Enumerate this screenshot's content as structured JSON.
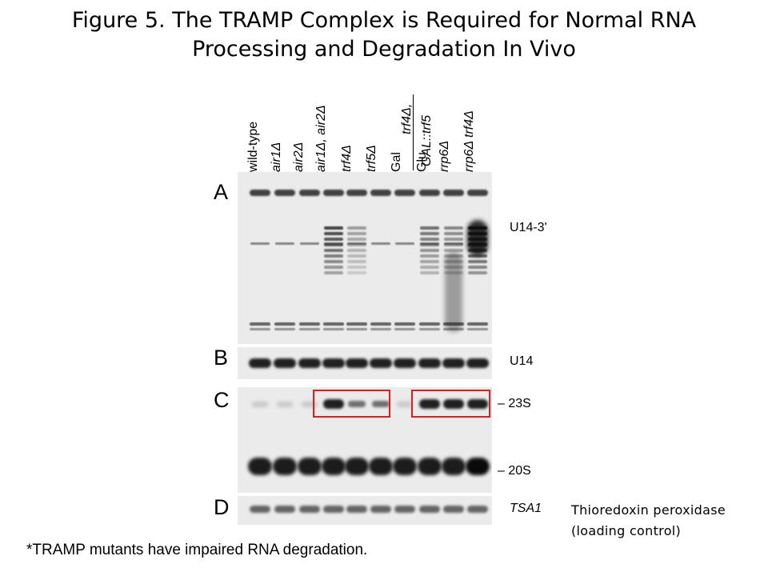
{
  "title": {
    "line1": "Figure 5. The TRAMP Complex is Required for Normal RNA",
    "line2": "Processing and Degradation In Vivo"
  },
  "lanes": [
    {
      "label": "wild-type",
      "italic": false
    },
    {
      "label": "air1Δ",
      "italic": true
    },
    {
      "label": "air2Δ",
      "italic": true
    },
    {
      "label": "air1Δ, air2Δ",
      "italic": true
    },
    {
      "label": "trf4Δ",
      "italic": true
    },
    {
      "label": "trf5Δ",
      "italic": true
    },
    {
      "label": "Gal",
      "italic": false
    },
    {
      "label": "Glu",
      "italic": false
    },
    {
      "label": "rrp6Δ",
      "italic": true
    },
    {
      "label": "rrp6Δ trf4Δ",
      "italic": true
    }
  ],
  "bracket_labels": {
    "top": "trf4Δ,",
    "bottom": "GAL::trf5"
  },
  "panels": {
    "A": {
      "letter": "A",
      "label": "U14-3'"
    },
    "B": {
      "letter": "B",
      "label": "U14"
    },
    "C": {
      "letter": "C",
      "label_top": "– 23S",
      "label_bottom": "– 20S"
    },
    "D": {
      "letter": "D",
      "label": "TSA1"
    }
  },
  "highlight_color": "#e31b1b",
  "side_note": {
    "line1": "Thioredoxin peroxidase",
    "line2": "(loading control)"
  },
  "footnote": "*TRAMP mutants have impaired RNA degradation."
}
